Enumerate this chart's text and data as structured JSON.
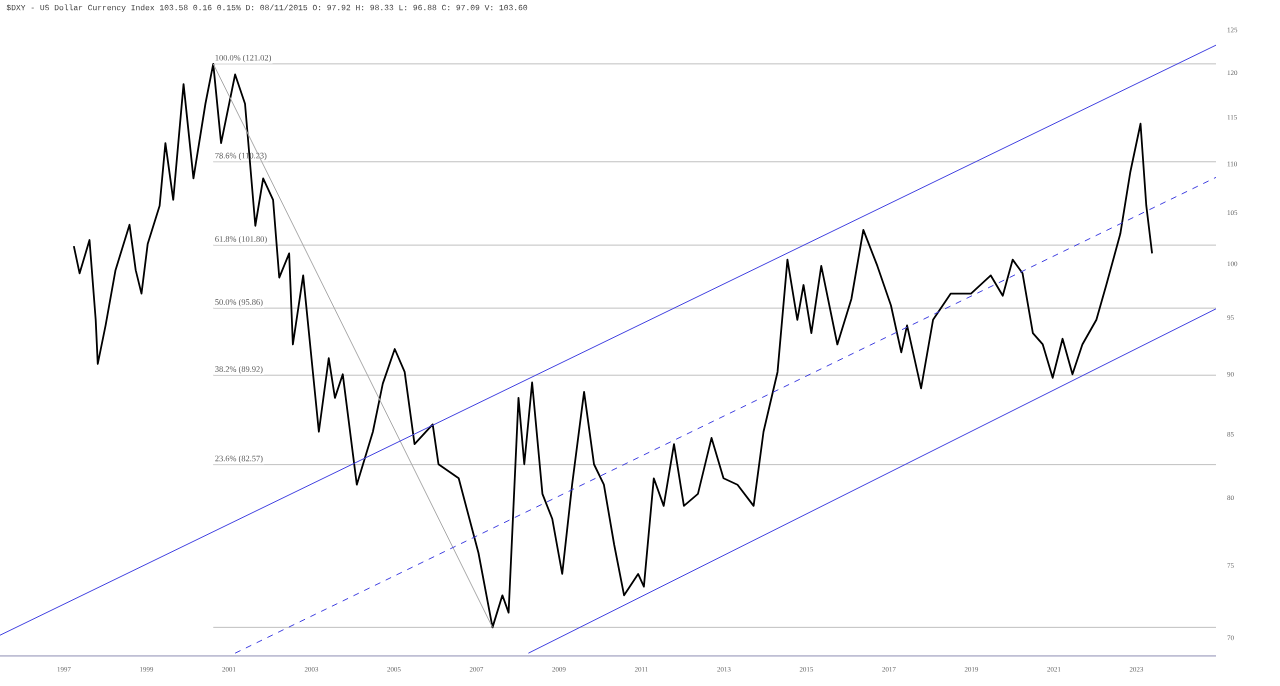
{
  "chart_data": {
    "type": "line",
    "title": "$DXY - US Dollar Currency Index 103.58 0.16 0.15% D: 08/11/2015 O: 97.92 H: 98.33 L: 96.88 C: 97.09 V: 103.60",
    "log": "y",
    "xlim": [
      1995.45,
      2024.93
    ],
    "ylim": [
      68.8,
      125
    ],
    "xticks": [
      1997,
      1999,
      2001,
      2003,
      2005,
      2007,
      2009,
      2011,
      2013,
      2015,
      2017,
      2019,
      2021,
      2023
    ],
    "yticks": [
      70,
      75,
      80,
      85,
      90,
      95,
      100,
      105,
      110,
      115,
      120,
      125
    ],
    "series": [
      {
        "color": "#000000",
        "line_style": "solid",
        "x": [
          1997.24,
          1997.38,
          1997.62,
          1997.77,
          1997.82,
          1998.01,
          1998.25,
          1998.59,
          1998.74,
          1998.88,
          1999.03,
          1999.32,
          1999.46,
          1999.65,
          1999.9,
          2000.14,
          2000.43,
          2000.62,
          2000.81,
          2001.15,
          2001.39,
          2001.64,
          2001.83,
          2002.07,
          2002.22,
          2002.46,
          2002.55,
          2002.8,
          2003.18,
          2003.42,
          2003.57,
          2003.76,
          2004.1,
          2004.49,
          2004.73,
          2005.02,
          2005.26,
          2005.5,
          2005.94,
          2006.08,
          2006.57,
          2007.05,
          2007.39,
          2007.63,
          2007.78,
          2008.02,
          2008.16,
          2008.35,
          2008.6,
          2008.84,
          2009.08,
          2009.32,
          2009.61,
          2009.85,
          2010.09,
          2010.34,
          2010.58,
          2010.92,
          2011.06,
          2011.3,
          2011.54,
          2011.79,
          2012.03,
          2012.37,
          2012.7,
          2012.99,
          2013.33,
          2013.72,
          2013.96,
          2014.3,
          2014.54,
          2014.78,
          2014.93,
          2015.12,
          2015.36,
          2015.75,
          2016.09,
          2016.38,
          2016.72,
          2017.05,
          2017.3,
          2017.44,
          2017.78,
          2018.07,
          2018.5,
          2018.99,
          2019.47,
          2019.76,
          2020.0,
          2020.24,
          2020.49,
          2020.73,
          2020.97,
          2021.21,
          2021.45,
          2021.69,
          2022.03,
          2022.27,
          2022.61,
          2022.85,
          2023.1,
          2023.24,
          2023.38
        ],
        "values": [
          101.7,
          99.1,
          102.3,
          94.8,
          90.9,
          94.3,
          99.4,
          103.8,
          99.4,
          97.2,
          101.9,
          105.7,
          112.2,
          106.3,
          118.7,
          108.5,
          116.5,
          121.02,
          112.2,
          119.8,
          116.5,
          103.7,
          108.5,
          106.3,
          98.7,
          101.0,
          92.6,
          98.9,
          85.2,
          91.4,
          88.0,
          90.0,
          81.0,
          85.2,
          89.2,
          92.2,
          90.2,
          84.2,
          85.8,
          82.6,
          81.5,
          75.9,
          70.7,
          72.9,
          71.7,
          88.0,
          82.6,
          89.3,
          80.3,
          78.4,
          74.4,
          81.0,
          88.5,
          82.6,
          81.0,
          76.5,
          72.9,
          74.4,
          73.5,
          81.5,
          79.4,
          84.2,
          79.4,
          80.3,
          84.7,
          81.5,
          81.0,
          79.4,
          85.2,
          90.2,
          100.4,
          94.8,
          98.0,
          93.6,
          99.8,
          92.6,
          96.7,
          103.3,
          99.8,
          96.1,
          91.9,
          94.3,
          88.8,
          94.8,
          97.2,
          97.2,
          98.9,
          97.0,
          100.4,
          99.1,
          93.6,
          92.6,
          89.7,
          93.1,
          90.0,
          92.6,
          94.8,
          98.0,
          102.9,
          109.1,
          114.3,
          105.7,
          101.0
        ]
      },
      {
        "type": "line",
        "color": "#a8a8a8",
        "line_style": "solid",
        "x": [
          2000.62,
          2007.39
        ],
        "values": [
          121.02,
          70.7
        ]
      },
      {
        "type": "line",
        "color": "#4040e0",
        "line_style": "solid",
        "x": [
          1995.45,
          2024.93
        ],
        "values": [
          70.17,
          123.2
        ]
      },
      {
        "type": "line",
        "color": "#4040e0",
        "line_style": "dashed",
        "x": [
          2001.15,
          2024.93
        ],
        "values": [
          68.98,
          108.6
        ]
      },
      {
        "type": "line",
        "color": "#4040e0",
        "line_style": "solid",
        "x": [
          2008.26,
          2024.93
        ],
        "values": [
          68.98,
          95.8
        ]
      }
    ],
    "ref_lines": [
      {
        "axis": "y",
        "value": 121.02,
        "label": "100.0% (121.02)",
        "color": "#c0c0c0"
      },
      {
        "axis": "y",
        "value": 110.23,
        "label": "78.6% (110.23)",
        "color": "#c0c0c0"
      },
      {
        "axis": "y",
        "value": 101.8,
        "label": "61.8% (101.80)",
        "color": "#c0c0c0"
      },
      {
        "axis": "y",
        "value": 95.86,
        "label": "50.0% (95.86)",
        "color": "#c0c0c0"
      },
      {
        "axis": "y",
        "value": 89.92,
        "label": "38.2% (89.92)",
        "color": "#c0c0c0"
      },
      {
        "axis": "y",
        "value": 82.57,
        "label": "23.6% (82.57)",
        "color": "#c0c0c0"
      },
      {
        "axis": "y",
        "value": 70.7,
        "color": "#c0c0c0"
      }
    ]
  }
}
